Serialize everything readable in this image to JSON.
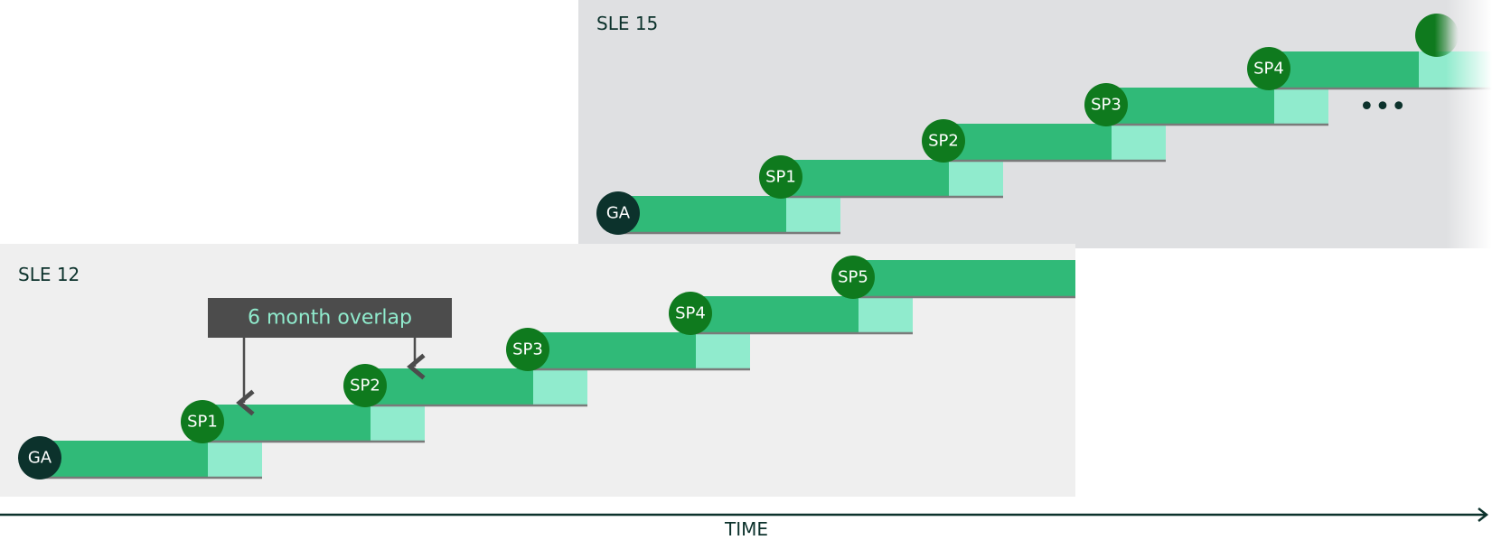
{
  "colors": {
    "sle15_panel_bg": "#dfe0e2",
    "sle12_panel_bg": "#efefef",
    "support_bar": "#30ba78",
    "overlap_bar": "#90ebcd",
    "sp_badge": "#0f7a1e",
    "ga_badge": "#0c322c",
    "callout_bg": "#4c4c4c",
    "callout_text": "#90ebcd",
    "baseline": "#7a7a7a",
    "axis": "#0c322c"
  },
  "panels": [
    {
      "title": "SLE 15",
      "releases": [
        "GA",
        "SP1",
        "SP2",
        "SP3",
        "SP4"
      ],
      "continues": true,
      "continuation_marker": "•••"
    },
    {
      "title": "SLE 12",
      "releases": [
        "GA",
        "SP1",
        "SP2",
        "SP3",
        "SP4",
        "SP5"
      ],
      "continues": false
    }
  ],
  "callout": {
    "text": "6 month overlap",
    "points_to": [
      "SP1",
      "SP2"
    ]
  },
  "axis": {
    "label": "TIME"
  }
}
